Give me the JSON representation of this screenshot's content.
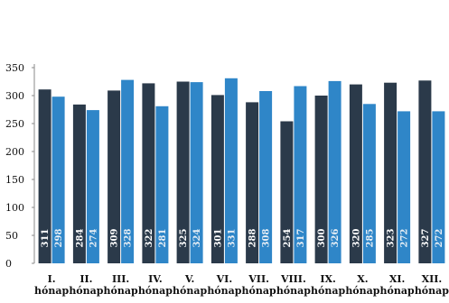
{
  "chart_data": {
    "type": "bar",
    "title": "",
    "xlabel": "",
    "ylabel": "",
    "ylim": [
      0,
      350
    ],
    "yticks": [
      0,
      50,
      100,
      150,
      200,
      250,
      300,
      350
    ],
    "grid": false,
    "legend": "none",
    "categories": [
      [
        "I.",
        "hónap"
      ],
      [
        "II.",
        "hónap"
      ],
      [
        "III.",
        "hónap"
      ],
      [
        "IV.",
        "hónap"
      ],
      [
        "V.",
        "hónap"
      ],
      [
        "VI.",
        "hónap"
      ],
      [
        "VII.",
        "hónap"
      ],
      [
        "VIII.",
        "hónap"
      ],
      [
        "IX.",
        "hónap"
      ],
      [
        "X.",
        "hónap"
      ],
      [
        "XI.",
        "hónap"
      ],
      [
        "XII.",
        "hónap"
      ]
    ],
    "series": [
      {
        "color": "#2b3a4a",
        "label_color": "#ffffff",
        "values": [
          311,
          284,
          309,
          322,
          325,
          301,
          288,
          254,
          300,
          320,
          323,
          327
        ]
      },
      {
        "color": "#2f86c8",
        "label_color": "#e6eef5",
        "values": [
          298,
          274,
          328,
          281,
          324,
          331,
          308,
          317,
          326,
          285,
          272,
          272
        ]
      }
    ]
  }
}
